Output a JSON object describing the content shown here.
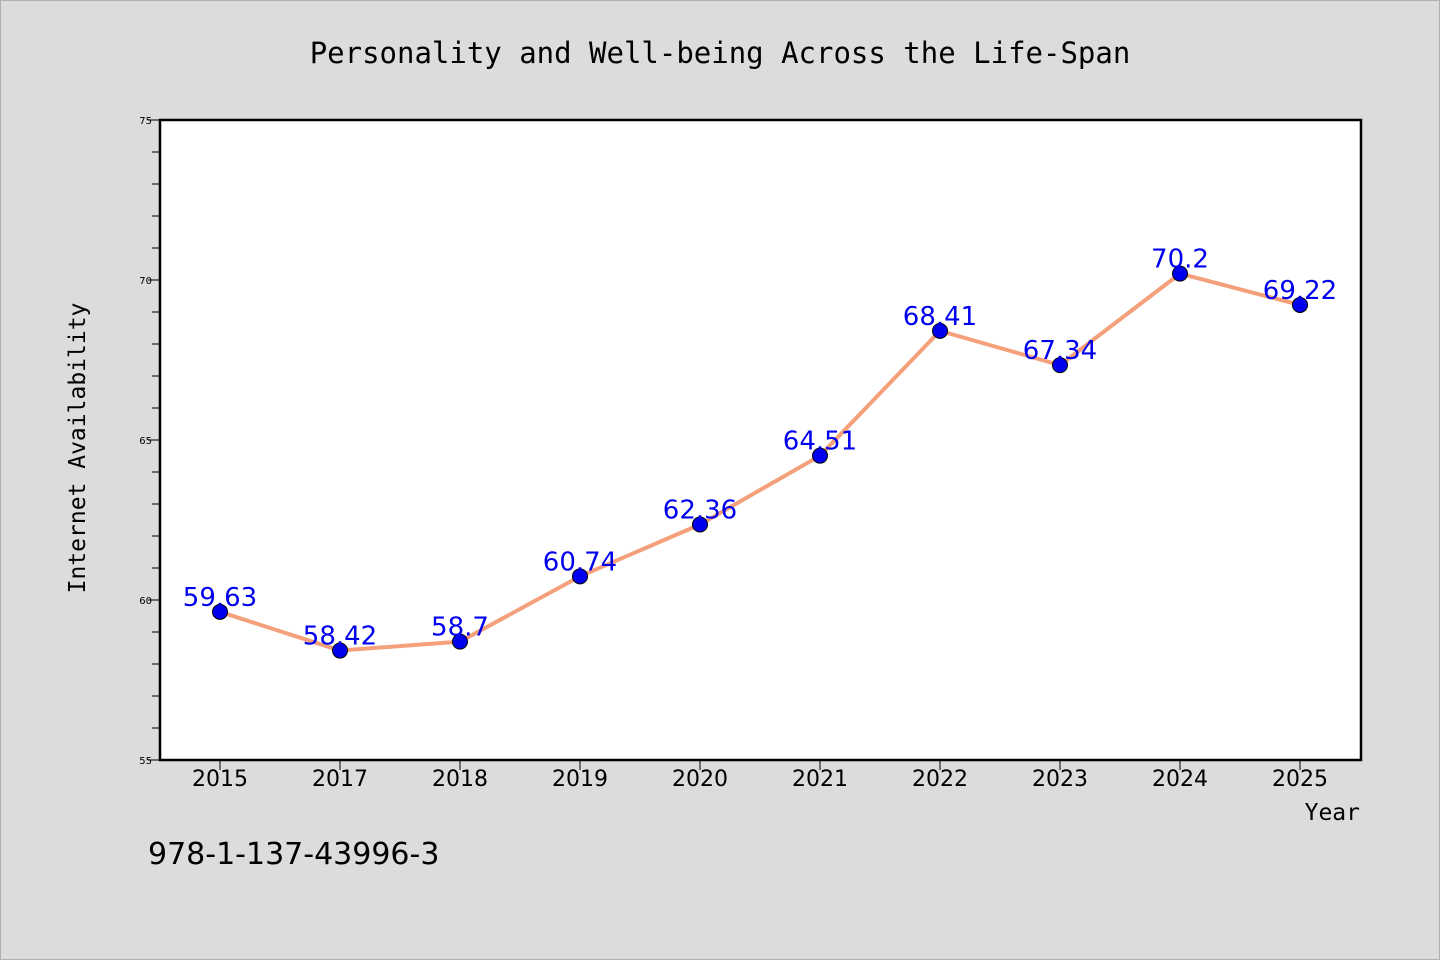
{
  "chart_data": {
    "type": "line",
    "title": "Personality and Well-being Across the Life-Span",
    "xlabel": "Year",
    "ylabel": "Internet Availability",
    "categories": [
      "2015",
      "2017",
      "2018",
      "2019",
      "2020",
      "2021",
      "2022",
      "2023",
      "2024",
      "2025"
    ],
    "series": [
      {
        "values": [
          59.63,
          58.42,
          58.7,
          60.74,
          62.36,
          64.51,
          68.41,
          67.34,
          70.2,
          69.22
        ],
        "labels": [
          "59.63",
          "58.42",
          "58.7",
          "60.74",
          "62.36",
          "64.51",
          "68.41",
          "67.34",
          "70.2",
          "69.22"
        ],
        "line_color": "#f4a07a",
        "marker_color": "#0000ee",
        "label_color": "#0000ee"
      }
    ],
    "ylim": [
      55,
      75
    ],
    "yticks": [
      "55",
      "60",
      "65",
      "70",
      "75"
    ],
    "grid": false,
    "legend": "none"
  },
  "footer": {
    "code": "978-1-137-43996-3"
  }
}
